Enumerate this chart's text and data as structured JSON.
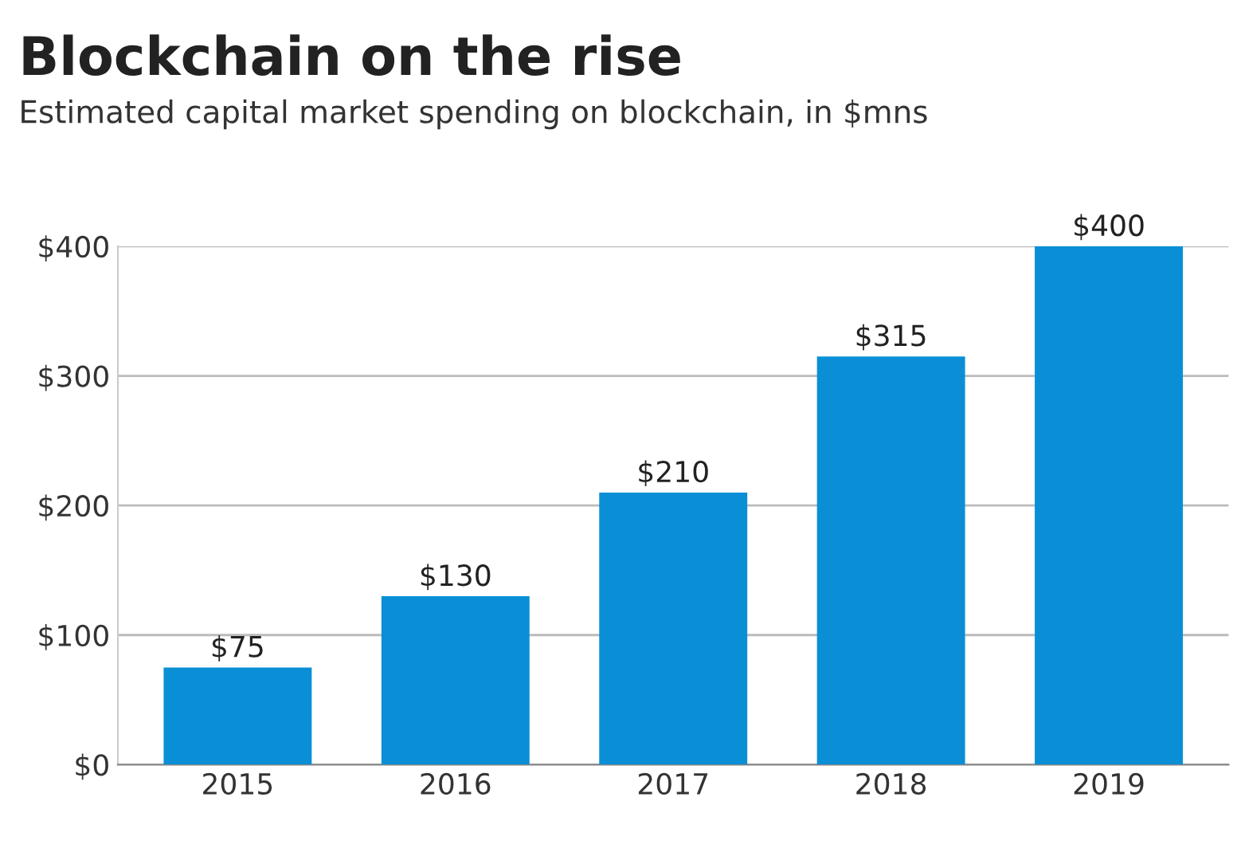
{
  "chart_data": {
    "type": "bar",
    "title": "Blockchain on the rise",
    "subtitle": "Estimated capital market spending on blockchain, in $mns",
    "categories": [
      "2015",
      "2016",
      "2017",
      "2018",
      "2019"
    ],
    "values": [
      75,
      130,
      210,
      315,
      400
    ],
    "value_labels": [
      "$75",
      "$130",
      "$210",
      "$315",
      "$400"
    ],
    "color": "#0a8fd6",
    "ylim": [
      0,
      400
    ],
    "yticks": [
      {
        "value": 0,
        "label": "$0"
      },
      {
        "value": 100,
        "label": "$100"
      },
      {
        "value": 200,
        "label": "$200"
      },
      {
        "value": 300,
        "label": "$300"
      },
      {
        "value": 400,
        "label": "$400"
      }
    ],
    "grid": "y",
    "legend": false
  }
}
